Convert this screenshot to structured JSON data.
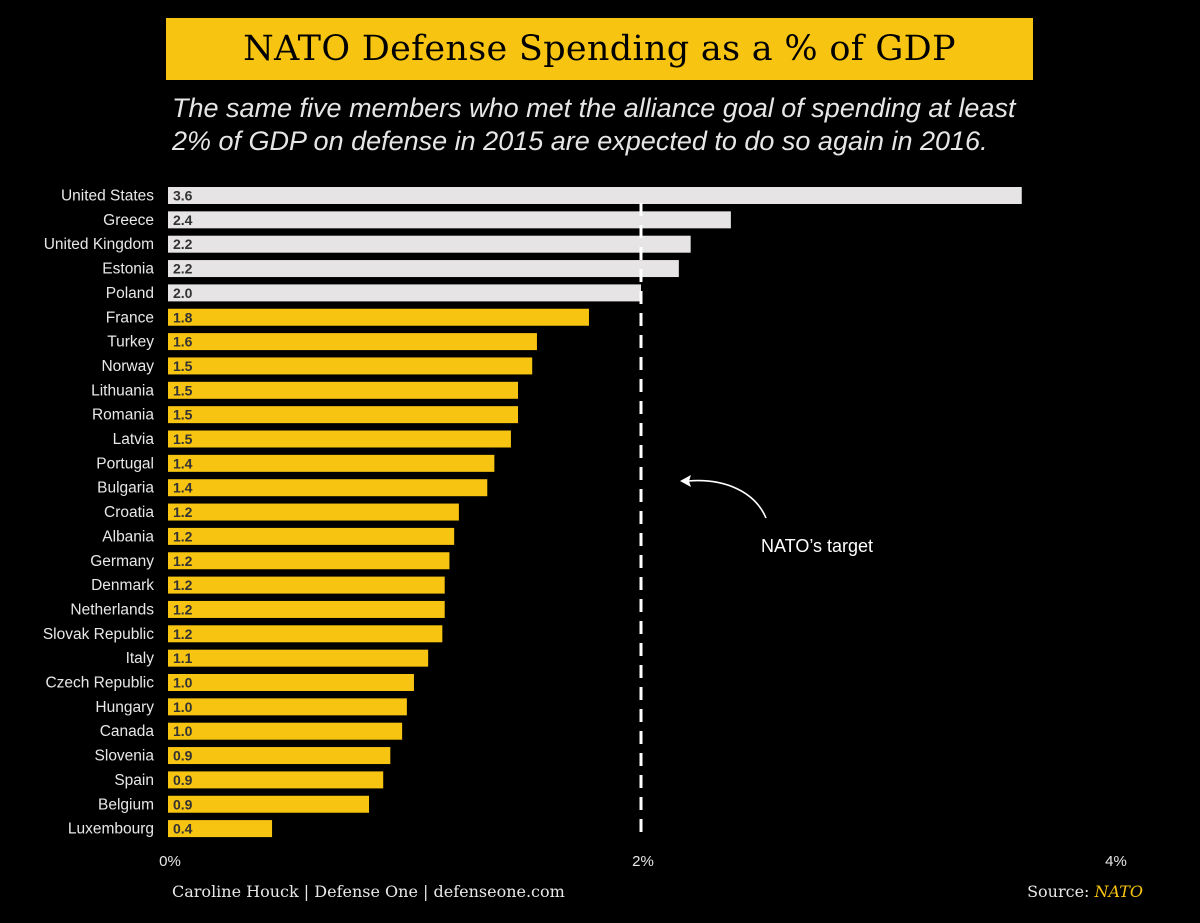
{
  "title": "NATO Defense Spending as a % of GDP",
  "subtitle_lines": [
    "The same five members who met the alliance goal of spending at least",
    "2% of GDP on defense in 2015 are expected to do so again in 2016."
  ],
  "colors": {
    "background": "#000000",
    "banner": "#f7c411",
    "meets_target": "#e6e4e5",
    "below_target": "#f7c411",
    "target_line": "#ffffff"
  },
  "chart_data": {
    "type": "bar",
    "orientation": "horizontal",
    "categories": [
      "United States",
      "Greece",
      "United Kingdom",
      "Estonia",
      "Poland",
      "France",
      "Turkey",
      "Norway",
      "Lithuania",
      "Romania",
      "Latvia",
      "Portugal",
      "Bulgaria",
      "Croatia",
      "Albania",
      "Germany",
      "Denmark",
      "Netherlands",
      "Slovak Republic",
      "Italy",
      "Czech Republic",
      "Hungary",
      "Canada",
      "Slovenia",
      "Spain",
      "Belgium",
      "Luxembourg"
    ],
    "values": [
      3.61,
      2.38,
      2.21,
      2.16,
      2.0,
      1.78,
      1.56,
      1.54,
      1.48,
      1.48,
      1.45,
      1.38,
      1.35,
      1.23,
      1.21,
      1.19,
      1.17,
      1.17,
      1.16,
      1.1,
      1.04,
      1.01,
      0.99,
      0.94,
      0.91,
      0.85,
      0.44
    ],
    "value_labels": [
      "3.6",
      "2.4",
      "2.2",
      "2.2",
      "2.0",
      "1.8",
      "1.6",
      "1.5",
      "1.5",
      "1.5",
      "1.5",
      "1.4",
      "1.4",
      "1.2",
      "1.2",
      "1.2",
      "1.2",
      "1.2",
      "1.2",
      "1.1",
      "1.0",
      "1.0",
      "1.0",
      "0.9",
      "0.9",
      "0.9",
      "0.4"
    ],
    "meets_target": [
      true,
      true,
      true,
      true,
      true,
      false,
      false,
      false,
      false,
      false,
      false,
      false,
      false,
      false,
      false,
      false,
      false,
      false,
      false,
      false,
      false,
      false,
      false,
      false,
      false,
      false,
      false
    ],
    "xlim": [
      0,
      4
    ],
    "xticks": [
      0,
      2,
      4
    ],
    "xtick_labels": [
      "0%",
      "2%",
      "4%"
    ],
    "target_value": 2,
    "annotation": "NATO’s target"
  },
  "footer": {
    "credit": "Caroline Houck | Defense One | defenseone.com",
    "source_prefix": "Source:",
    "source_name": "NATO"
  }
}
